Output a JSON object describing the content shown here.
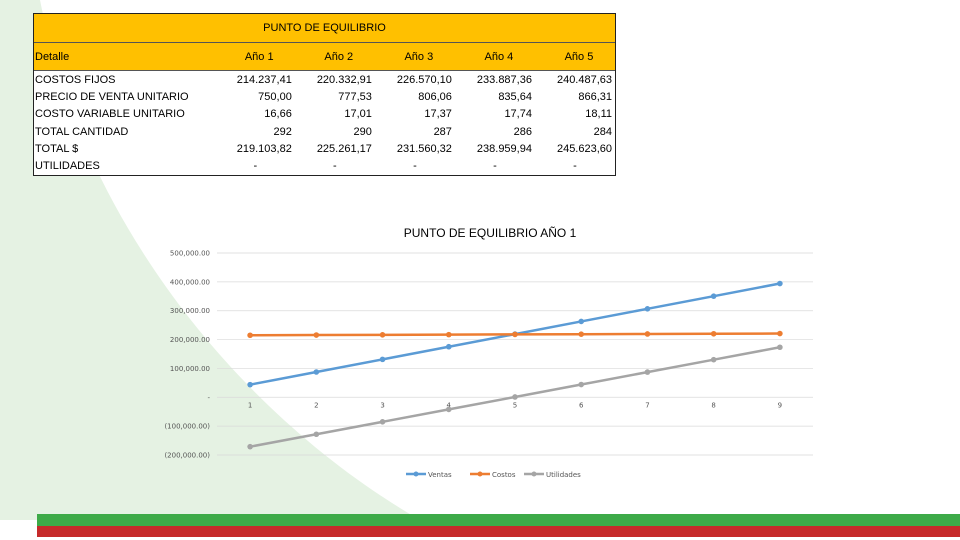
{
  "colors": {
    "table_header": "#ffc000",
    "ventas": "#5b9bd5",
    "costos": "#ed7d31",
    "utilidades": "#a5a5a5",
    "background_swoosh": "#e5f2e3",
    "footer_green": "#3daa48",
    "footer_red": "#c62a2a"
  },
  "table": {
    "title": "PUNTO DE EQUILIBRIO",
    "header_label": "Detalle",
    "years": [
      "Año 1",
      "Año 2",
      "Año 3",
      "Año 4",
      "Año 5"
    ],
    "rows": [
      {
        "label": "COSTOS FIJOS",
        "values": [
          "214.237,41",
          "220.332,91",
          "226.570,10",
          "233.887,36",
          "240.487,63"
        ]
      },
      {
        "label": "PRECIO DE VENTA UNITARIO",
        "values": [
          "750,00",
          "777,53",
          "806,06",
          "835,64",
          "866,31"
        ]
      },
      {
        "label": "COSTO VARIABLE UNITARIO",
        "values": [
          "16,66",
          "17,01",
          "17,37",
          "17,74",
          "18,11"
        ]
      },
      {
        "label": "TOTAL CANTIDAD",
        "values": [
          "292",
          "290",
          "287",
          "286",
          "284"
        ]
      },
      {
        "label": "TOTAL $",
        "values": [
          "219.103,82",
          "225.261,17",
          "231.560,32",
          "238.959,94",
          "245.623,60"
        ]
      },
      {
        "label": "UTILIDADES",
        "values": [
          "-",
          "-",
          "-",
          "-",
          "-"
        ]
      }
    ]
  },
  "chart_data": {
    "type": "line",
    "title": "PUNTO DE EQUILIBRIO AÑO 1",
    "xlabel": "",
    "ylabel": "",
    "x": [
      1,
      2,
      3,
      4,
      5,
      6,
      7,
      8,
      9
    ],
    "ylim": [
      -200000,
      500000
    ],
    "yticks": [
      {
        "value": 500000,
        "label": "500,000.00"
      },
      {
        "value": 400000,
        "label": "400,000.00"
      },
      {
        "value": 300000,
        "label": "300,000.00"
      },
      {
        "value": 200000,
        "label": "200,000.00"
      },
      {
        "value": 100000,
        "label": "100,000.00"
      },
      {
        "value": 0,
        "label": "-"
      },
      {
        "value": -100000,
        "label": "(100,000.00)"
      },
      {
        "value": -200000,
        "label": "(200,000.00)"
      }
    ],
    "grid": true,
    "legend_position": "bottom",
    "series": [
      {
        "name": "Ventas",
        "color": "#5b9bd5",
        "values": [
          43800,
          87600,
          131400,
          175200,
          219000,
          262800,
          306600,
          350400,
          394200
        ]
      },
      {
        "name": "Costos",
        "color": "#ed7d31",
        "values": [
          214970,
          215700,
          216440,
          217170,
          217900,
          218630,
          219360,
          220100,
          220830
        ]
      },
      {
        "name": "Utilidades",
        "color": "#a5a5a5",
        "values": [
          -171170,
          -128100,
          -85040,
          -41970,
          1100,
          44170,
          87240,
          130300,
          173370
        ]
      }
    ]
  }
}
